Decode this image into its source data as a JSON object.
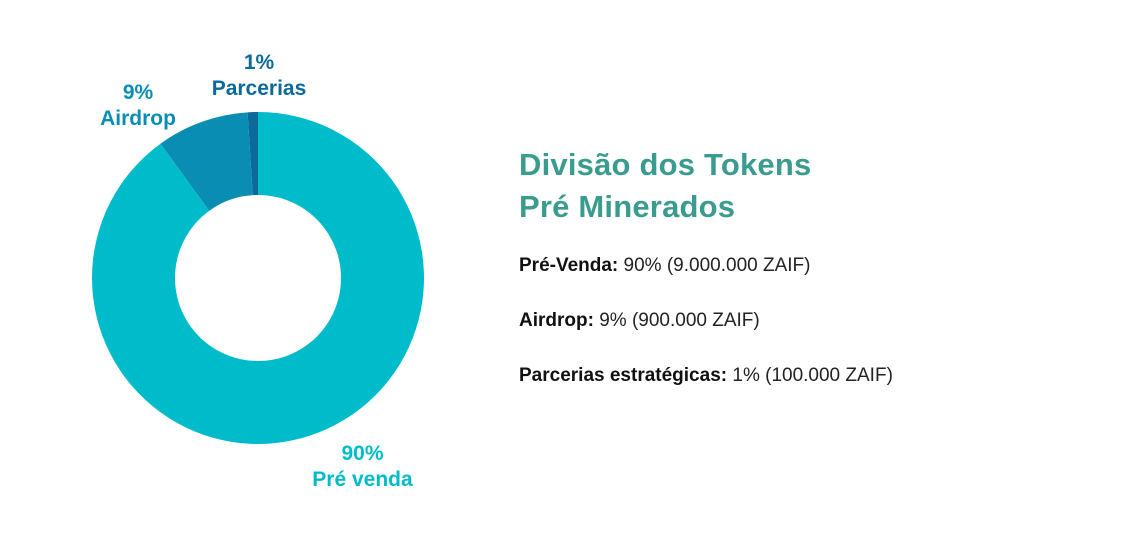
{
  "colors": {
    "pre_venda": "#00BCCB",
    "airdrop": "#0A8DB3",
    "parcerias": "#0B6A9A",
    "title": "#3A9C8E",
    "body_text": "#222222"
  },
  "chart_data": {
    "type": "pie",
    "style": "donut",
    "title": "",
    "slices": [
      {
        "pct_label": "1%",
        "name": "Parcerias",
        "value": 1
      },
      {
        "pct_label": "9%",
        "name": "Airdrop",
        "value": 9
      },
      {
        "pct_label": "90%",
        "name": "Pré venda",
        "value": 90
      }
    ],
    "legend": "none"
  },
  "panel": {
    "title_line1": "Divisão dos Tokens",
    "title_line2": "Pré Minerados",
    "items": [
      {
        "key": "Pré-Venda:",
        "value": "90% (9.000.000 ZAIF)"
      },
      {
        "key": "Airdrop:",
        "value": "9% (900.000 ZAIF)"
      },
      {
        "key": "Parcerias estratégicas:",
        "value": "1% (100.000 ZAIF)"
      }
    ]
  }
}
